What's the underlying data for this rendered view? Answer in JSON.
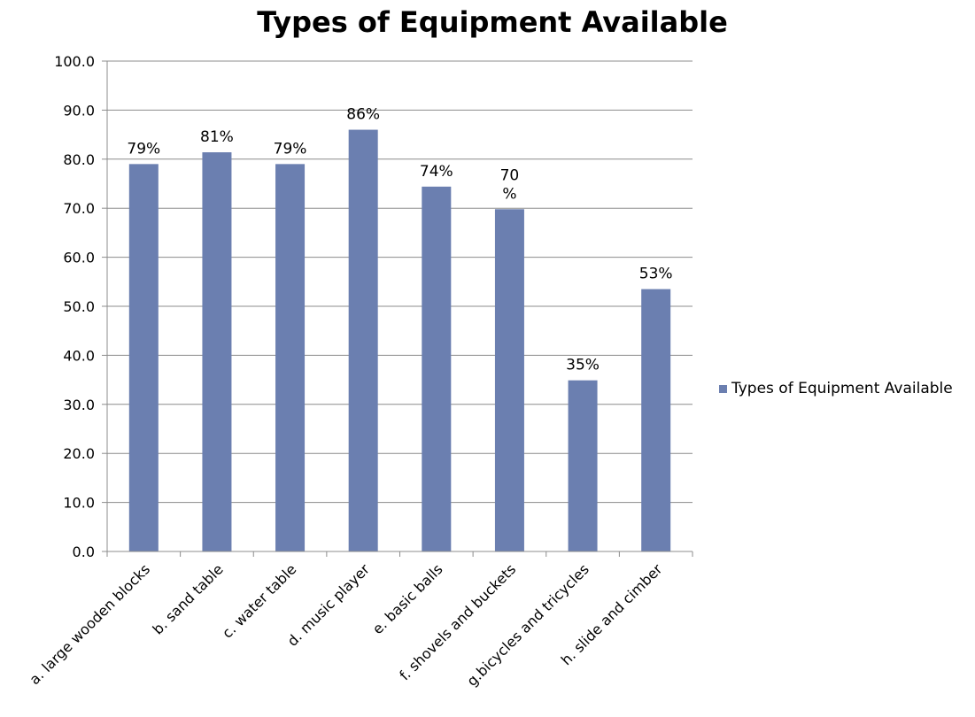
{
  "chart_data": {
    "type": "bar",
    "title": "Types of Equipment Available",
    "xlabel": "",
    "ylabel": "",
    "categories": [
      "a. large wooden blocks",
      "b. sand table",
      "c. water table",
      "d. music player",
      "e. basic balls",
      "f. shovels and buckets",
      "g.bicycles and tricycles",
      "h. slide and cimber"
    ],
    "series": [
      {
        "name": "Types of Equipment Available",
        "values": [
          79.0,
          81.4,
          79.0,
          86.0,
          74.4,
          69.8,
          34.9,
          53.5
        ],
        "data_labels": [
          [
            "79%"
          ],
          [
            "81%"
          ],
          [
            "79%"
          ],
          [
            "86%"
          ],
          [
            "74%"
          ],
          [
            "70",
            "%"
          ],
          [
            "35%"
          ],
          [
            "53%"
          ]
        ],
        "color": "#6b7fb0"
      }
    ],
    "ylim": [
      0,
      100
    ],
    "ytick_labels": [
      "0.0",
      "10.0",
      "20.0",
      "30.0",
      "40.0",
      "50.0",
      "60.0",
      "70.0",
      "80.0",
      "90.0",
      "100.0"
    ],
    "grid": true,
    "legend_position": "right"
  }
}
